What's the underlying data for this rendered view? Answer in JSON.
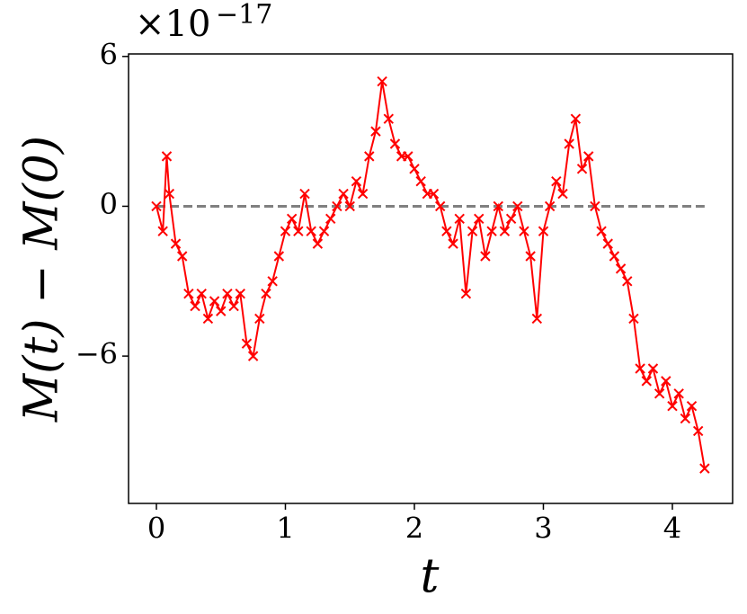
{
  "chart_data": {
    "type": "line",
    "marker": "x",
    "offset_text": {
      "base": "×10",
      "exponent": "−17"
    },
    "xlabel": "t",
    "ylabel": "M(t) − M(0)",
    "x": [
      0,
      0.05,
      0.08,
      0.1,
      0.15,
      0.2,
      0.25,
      0.3,
      0.35,
      0.4,
      0.45,
      0.5,
      0.55,
      0.6,
      0.65,
      0.7,
      0.75,
      0.8,
      0.85,
      0.9,
      0.95,
      1.0,
      1.05,
      1.1,
      1.15,
      1.2,
      1.25,
      1.3,
      1.35,
      1.4,
      1.45,
      1.5,
      1.55,
      1.6,
      1.65,
      1.7,
      1.75,
      1.8,
      1.85,
      1.9,
      1.95,
      2.0,
      2.05,
      2.1,
      2.15,
      2.2,
      2.25,
      2.3,
      2.35,
      2.4,
      2.45,
      2.5,
      2.55,
      2.6,
      2.65,
      2.7,
      2.75,
      2.8,
      2.85,
      2.9,
      2.95,
      3.0,
      3.05,
      3.1,
      3.15,
      3.2,
      3.25,
      3.3,
      3.35,
      3.4,
      3.45,
      3.5,
      3.55,
      3.6,
      3.65,
      3.7,
      3.75,
      3.8,
      3.85,
      3.9,
      3.95,
      4.0,
      4.05,
      4.1,
      4.15,
      4.2,
      4.25
    ],
    "values": [
      0,
      -1,
      2,
      0.5,
      -1.5,
      -2,
      -3.5,
      -4,
      -3.5,
      -4.5,
      -3.8,
      -4.2,
      -3.5,
      -4,
      -3.5,
      -5.5,
      -6,
      -4.5,
      -3.5,
      -3,
      -2,
      -1,
      -0.5,
      -1,
      0.5,
      -1,
      -1.5,
      -1,
      -0.5,
      0,
      0.5,
      0,
      1,
      0.5,
      2,
      3,
      5,
      3.5,
      2.5,
      2,
      2,
      1.5,
      1,
      0.5,
      0.5,
      0,
      -1,
      -1.5,
      -0.5,
      -3.5,
      -1,
      -0.5,
      -2,
      -1,
      0,
      -1,
      -0.5,
      0,
      -1,
      -2,
      -4.5,
      -1,
      0,
      1,
      0.5,
      2.5,
      3.5,
      1.5,
      2,
      0,
      -1,
      -1.5,
      -2,
      -2.5,
      -3,
      -4.5,
      -6.5,
      -7,
      -6.5,
      -7.5,
      -7,
      -8,
      -7.5,
      -8.5,
      -8,
      -9,
      -10.5
    ],
    "color": "#ff0000",
    "reference_line": 0,
    "reference_color": "#808080",
    "xlim": [
      -0.216,
      4.467
    ],
    "xticks": [
      0,
      1,
      2,
      3,
      4
    ],
    "ylim": [
      -11.9,
      6.1
    ],
    "yticks": [
      6,
      0,
      {
        "value": -6,
        "label": "−6"
      }
    ]
  }
}
